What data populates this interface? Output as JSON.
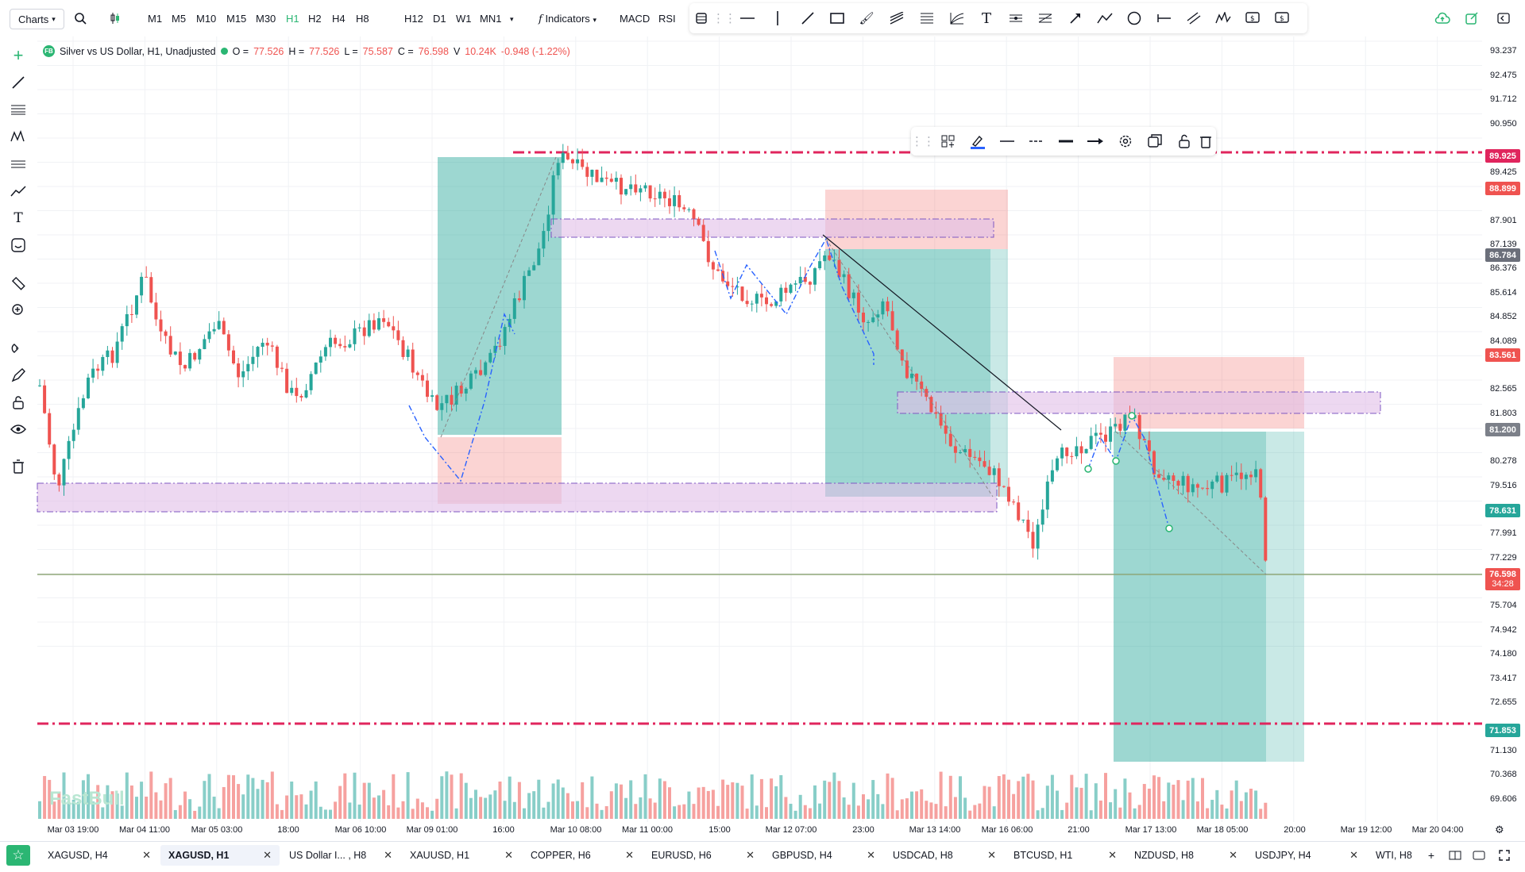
{
  "toolbar": {
    "charts_label": "Charts",
    "timeframes": [
      "M1",
      "M5",
      "M10",
      "M15",
      "M30",
      "H1",
      "H2",
      "H4",
      "H8",
      "H12",
      "D1",
      "W1",
      "MN1"
    ],
    "active_timeframe": "H1",
    "indicators_label": "Indicators",
    "macd_label": "MACD",
    "rsi_label": "RSI"
  },
  "legend": {
    "title": "Silver vs US Dollar, H1, Unadjusted",
    "open_label": "O =",
    "open": "77.526",
    "high_label": "H =",
    "high": "77.526",
    "low_label": "L =",
    "low": "75.587",
    "close_label": "C =",
    "close": "76.598",
    "volume_label": "V",
    "volume": "10.24K",
    "change": "-0.948 (-1.22%)"
  },
  "watermark": "FastBull",
  "price_axis": {
    "ticks": [
      "93.237",
      "92.475",
      "91.712",
      "90.950",
      "89.425",
      "87.901",
      "87.139",
      "86.376",
      "85.614",
      "84.852",
      "84.089",
      "82.565",
      "81.803",
      "80.278",
      "79.516",
      "77.991",
      "77.229",
      "75.704",
      "74.942",
      "74.180",
      "73.417",
      "72.655",
      "71.130",
      "70.368",
      "69.606"
    ],
    "tags": [
      {
        "value": "89.925",
        "color": "#e0255d"
      },
      {
        "value": "88.899",
        "color": "#ef5350"
      },
      {
        "value": "86.784",
        "color": "#6b6f7a"
      },
      {
        "value": "83.561",
        "color": "#ef5350"
      },
      {
        "value": "81.200",
        "color": "#7c8089"
      },
      {
        "value": "78.631",
        "color": "#26a69a"
      },
      {
        "value": "76.598",
        "color": "#ef5350"
      },
      {
        "value": "71.853",
        "color": "#26a69a"
      }
    ],
    "countdown": "34:28"
  },
  "time_axis": [
    "Mar 03 19:00",
    "Mar 04 11:00",
    "Mar 05 03:00",
    "18:00",
    "Mar 06 10:00",
    "Mar 09 01:00",
    "16:00",
    "Mar 10 08:00",
    "Mar 11 00:00",
    "15:00",
    "Mar 12 07:00",
    "23:00",
    "Mar 13 14:00",
    "Mar 16 06:00",
    "21:00",
    "Mar 17 13:00",
    "Mar 18 05:00",
    "20:00",
    "Mar 19 12:00",
    "Mar 20 04:00"
  ],
  "tabs": [
    {
      "label": "XAGUSD, H4",
      "active": false
    },
    {
      "label": "XAGUSD, H1",
      "active": true
    },
    {
      "label": "US Dollar I... , H8",
      "active": false
    },
    {
      "label": "XAUUSD, H1",
      "active": false
    },
    {
      "label": "COPPER, H6",
      "active": false
    },
    {
      "label": "EURUSD, H6",
      "active": false
    },
    {
      "label": "GBPUSD, H4",
      "active": false
    },
    {
      "label": "USDCAD, H8",
      "active": false
    },
    {
      "label": "BTCUSD, H1",
      "active": false
    },
    {
      "label": "NZDUSD, H8",
      "active": false
    },
    {
      "label": "USDJPY, H4",
      "active": false
    },
    {
      "label": "WTI, H8",
      "active": false
    }
  ],
  "colors": {
    "up": "#26a69a",
    "down": "#ef5350",
    "accent": "#2bb673",
    "level_line": "#e0255d",
    "zone": "#e1bee7"
  }
}
